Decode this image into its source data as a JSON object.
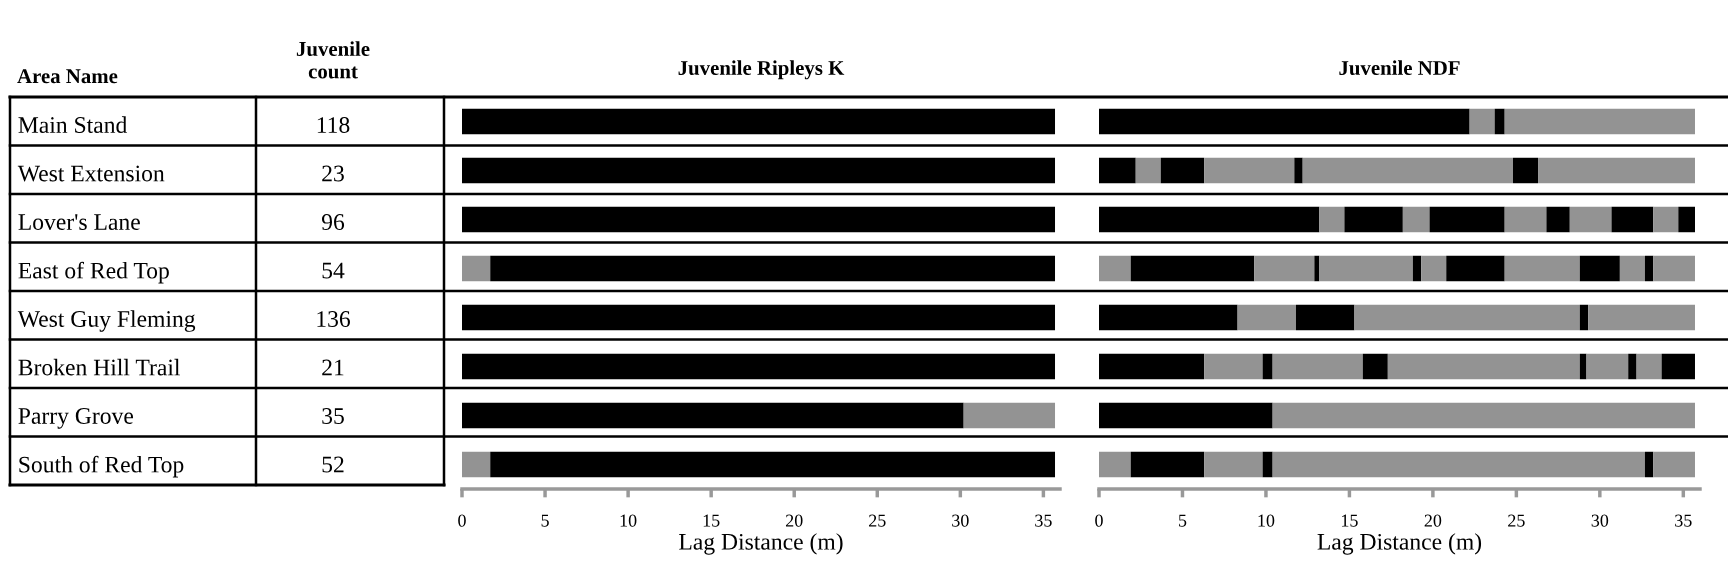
{
  "chart_data": [
    {
      "type": "other",
      "categories": [
        "Main Stand",
        "West Extension",
        "Lover's Lane",
        "East of Red Top",
        "West Guy Fleming",
        "Broken Hill Trail",
        "Parry Grove",
        "South of Red Top"
      ],
      "values": [
        118,
        23,
        96,
        54,
        136,
        21,
        35,
        52
      ],
      "data_labels": true,
      "annotations": [
        "Area Name",
        "Juvenile count"
      ]
    },
    {
      "type": "bar",
      "orientation": "horizontal",
      "stacked": true,
      "title": "Juvenile Ripleys K",
      "xlabel": "Lag Distance (m)",
      "tick_labels": "x",
      "xlim": [
        0,
        36
      ],
      "xticks": [
        0,
        5,
        10,
        15,
        20,
        25,
        30,
        35
      ],
      "categories": [
        null,
        null,
        null,
        null,
        null,
        null,
        null,
        null
      ],
      "series": [
        {
          "values": [
            35.7,
            35.7,
            35.7,
            1.7,
            35.7,
            35.7,
            30.2,
            1.7
          ],
          "colors": [
            "#000000",
            "#000000",
            "#000000",
            "#939393",
            "#000000",
            "#000000",
            "#000000",
            "#939393"
          ]
        },
        {
          "values": [
            null,
            null,
            null,
            34.0,
            null,
            null,
            5.5,
            34.0
          ],
          "colors": [
            null,
            null,
            null,
            "#000000",
            null,
            null,
            "#939393",
            "#000000"
          ]
        }
      ]
    },
    {
      "type": "bar",
      "orientation": "horizontal",
      "stacked": true,
      "title": "Juvenile NDF",
      "xlabel": "Lag Distance (m)",
      "tick_labels": "x",
      "xlim": [
        0,
        36
      ],
      "xticks": [
        0,
        5,
        10,
        15,
        20,
        25,
        30,
        35
      ],
      "categories": [
        null,
        null,
        null,
        null,
        null,
        null,
        null,
        null
      ],
      "series": [
        {
          "values": [
            22.2,
            2.2,
            13.2,
            1.9,
            8.3,
            6.3,
            10.4,
            1.9
          ],
          "colors": [
            "#000000",
            "#000000",
            "#000000",
            "#939393",
            "#000000",
            "#000000",
            "#000000",
            "#939393"
          ]
        },
        {
          "values": [
            1.5,
            1.5,
            1.5,
            7.4,
            3.5,
            3.5,
            25.3,
            4.4
          ],
          "colors": [
            "#939393",
            "#939393",
            "#939393",
            "#000000",
            "#939393",
            "#939393",
            "#939393",
            "#000000"
          ]
        },
        {
          "values": [
            0.6,
            2.6,
            3.5,
            3.6,
            3.5,
            0.6,
            null,
            3.5
          ],
          "colors": [
            "#000000",
            "#000000",
            "#000000",
            "#939393",
            "#000000",
            "#000000",
            null,
            "#939393"
          ]
        },
        {
          "values": [
            11.4,
            5.4,
            1.6,
            0.3,
            13.5,
            5.4,
            null,
            0.6
          ],
          "colors": [
            "#939393",
            "#939393",
            "#939393",
            "#000000",
            "#939393",
            "#939393",
            null,
            "#000000"
          ]
        },
        {
          "values": [
            null,
            0.5,
            4.5,
            5.6,
            0.5,
            1.5,
            null,
            22.3
          ],
          "colors": [
            null,
            "#000000",
            "#000000",
            "#939393",
            "#000000",
            "#000000",
            null,
            "#939393"
          ]
        },
        {
          "values": [
            null,
            12.6,
            2.5,
            0.5,
            6.4,
            11.5,
            null,
            0.5
          ],
          "colors": [
            null,
            "#939393",
            "#939393",
            "#000000",
            "#939393",
            "#939393",
            null,
            "#000000"
          ]
        },
        {
          "values": [
            null,
            1.5,
            1.4,
            1.5,
            null,
            0.4,
            null,
            2.5
          ],
          "colors": [
            null,
            "#000000",
            "#000000",
            "#939393",
            null,
            "#000000",
            null,
            "#939393"
          ]
        },
        {
          "values": [
            null,
            9.4,
            2.5,
            3.5,
            null,
            2.5,
            null,
            null
          ],
          "colors": [
            null,
            "#939393",
            "#939393",
            "#000000",
            null,
            "#939393",
            null,
            null
          ]
        },
        {
          "values": [
            null,
            null,
            2.5,
            4.5,
            null,
            0.5,
            null,
            null
          ],
          "colors": [
            null,
            null,
            "#000000",
            "#939393",
            null,
            "#000000",
            null,
            null
          ]
        },
        {
          "values": [
            null,
            null,
            1.5,
            2.4,
            null,
            1.5,
            null,
            null
          ],
          "colors": [
            null,
            null,
            "#939393",
            "#000000",
            null,
            "#939393",
            null,
            null
          ]
        },
        {
          "values": [
            null,
            null,
            1.0,
            1.5,
            null,
            2.0,
            null,
            null
          ],
          "colors": [
            null,
            null,
            "#000000",
            "#939393",
            null,
            "#000000",
            null,
            null
          ]
        },
        {
          "values": [
            null,
            null,
            null,
            0.5,
            null,
            null,
            null,
            null
          ],
          "colors": [
            null,
            null,
            null,
            "#000000",
            null,
            null,
            null,
            null
          ]
        },
        {
          "values": [
            null,
            null,
            null,
            2.5,
            null,
            null,
            null,
            null
          ],
          "colors": [
            null,
            null,
            null,
            "#939393",
            null,
            null,
            null,
            null
          ]
        }
      ]
    }
  ]
}
